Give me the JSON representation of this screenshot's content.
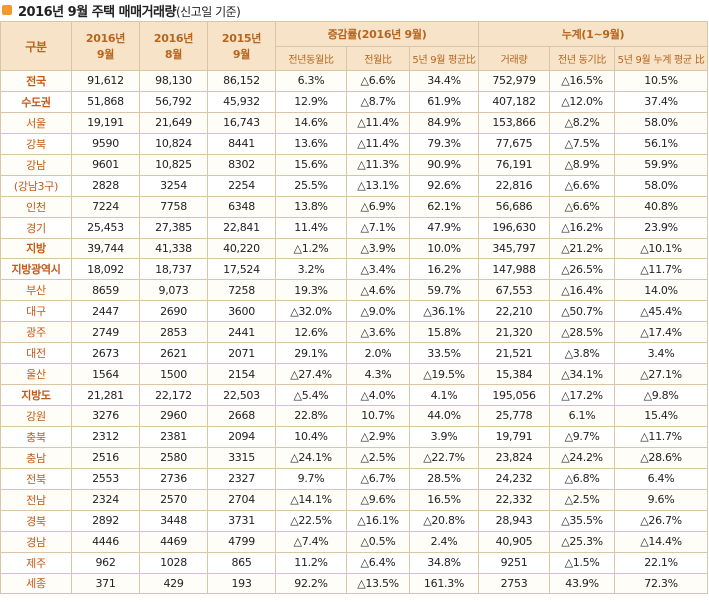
{
  "title": "2016년 9월 주택 매매거래량",
  "title_sub": "(신고일 기준)",
  "header": {
    "col_region": "구분",
    "col_2016_9": "2016년\n9월",
    "col_2016_8": "2016년\n8월",
    "col_2015_9": "2015년\n9월",
    "group_change": "증감률(2016년 9월)",
    "group_cumulative": "누계(1~9월)",
    "sub_yoy": "전년동월比",
    "sub_mom": "전월比",
    "sub_5y": "5년 9월 평균比",
    "sub_volume": "거래량",
    "sub_cum_yoy": "전년 동기比",
    "sub_cum_5y": "5년 9월 누계 평균 比"
  },
  "rows": [
    {
      "region": "전국",
      "bold": true,
      "c": [
        "91,612",
        "98,130",
        "86,152",
        "6.3%",
        "△6.6%",
        "34.4%",
        "752,979",
        "△16.5%",
        "10.5%"
      ]
    },
    {
      "region": "수도권",
      "bold": true,
      "c": [
        "51,868",
        "56,792",
        "45,932",
        "12.9%",
        "△8.7%",
        "61.9%",
        "407,182",
        "△12.0%",
        "37.4%"
      ]
    },
    {
      "region": "서울",
      "bold": false,
      "c": [
        "19,191",
        "21,649",
        "16,743",
        "14.6%",
        "△11.4%",
        "84.9%",
        "153,866",
        "△8.2%",
        "58.0%"
      ]
    },
    {
      "region": "강북",
      "bold": false,
      "c": [
        "9590",
        "10,824",
        "8441",
        "13.6%",
        "△11.4%",
        "79.3%",
        "77,675",
        "△7.5%",
        "56.1%"
      ]
    },
    {
      "region": "강남",
      "bold": false,
      "c": [
        "9601",
        "10,825",
        "8302",
        "15.6%",
        "△11.3%",
        "90.9%",
        "76,191",
        "△8.9%",
        "59.9%"
      ]
    },
    {
      "region": "(강남3구)",
      "bold": false,
      "c": [
        "2828",
        "3254",
        "2254",
        "25.5%",
        "△13.1%",
        "92.6%",
        "22,816",
        "△6.6%",
        "58.0%"
      ]
    },
    {
      "region": "인천",
      "bold": false,
      "c": [
        "7224",
        "7758",
        "6348",
        "13.8%",
        "△6.9%",
        "62.1%",
        "56,686",
        "△6.6%",
        "40.8%"
      ]
    },
    {
      "region": "경기",
      "bold": false,
      "c": [
        "25,453",
        "27,385",
        "22,841",
        "11.4%",
        "△7.1%",
        "47.9%",
        "196,630",
        "△16.2%",
        "23.9%"
      ]
    },
    {
      "region": "지방",
      "bold": true,
      "c": [
        "39,744",
        "41,338",
        "40,220",
        "△1.2%",
        "△3.9%",
        "10.0%",
        "345,797",
        "△21.2%",
        "△10.1%"
      ]
    },
    {
      "region": "지방광역시",
      "bold": true,
      "c": [
        "18,092",
        "18,737",
        "17,524",
        "3.2%",
        "△3.4%",
        "16.2%",
        "147,988",
        "△26.5%",
        "△11.7%"
      ]
    },
    {
      "region": "부산",
      "bold": false,
      "c": [
        "8659",
        "9,073",
        "7258",
        "19.3%",
        "△4.6%",
        "59.7%",
        "67,553",
        "△16.4%",
        "14.0%"
      ]
    },
    {
      "region": "대구",
      "bold": false,
      "c": [
        "2447",
        "2690",
        "3600",
        "△32.0%",
        "△9.0%",
        "△36.1%",
        "22,210",
        "△50.7%",
        "△45.4%"
      ]
    },
    {
      "region": "광주",
      "bold": false,
      "c": [
        "2749",
        "2853",
        "2441",
        "12.6%",
        "△3.6%",
        "15.8%",
        "21,320",
        "△28.5%",
        "△17.4%"
      ]
    },
    {
      "region": "대전",
      "bold": false,
      "c": [
        "2673",
        "2621",
        "2071",
        "29.1%",
        "2.0%",
        "33.5%",
        "21,521",
        "△3.8%",
        "3.4%"
      ]
    },
    {
      "region": "울산",
      "bold": false,
      "c": [
        "1564",
        "1500",
        "2154",
        "△27.4%",
        "4.3%",
        "△19.5%",
        "15,384",
        "△34.1%",
        "△27.1%"
      ]
    },
    {
      "region": "지방도",
      "bold": true,
      "c": [
        "21,281",
        "22,172",
        "22,503",
        "△5.4%",
        "△4.0%",
        "4.1%",
        "195,056",
        "△17.2%",
        "△9.8%"
      ]
    },
    {
      "region": "강원",
      "bold": false,
      "c": [
        "3276",
        "2960",
        "2668",
        "22.8%",
        "10.7%",
        "44.0%",
        "25,778",
        "6.1%",
        "15.4%"
      ]
    },
    {
      "region": "충북",
      "bold": false,
      "c": [
        "2312",
        "2381",
        "2094",
        "10.4%",
        "△2.9%",
        "3.9%",
        "19,791",
        "△9.7%",
        "△11.7%"
      ]
    },
    {
      "region": "충남",
      "bold": false,
      "c": [
        "2516",
        "2580",
        "3315",
        "△24.1%",
        "△2.5%",
        "△22.7%",
        "23,824",
        "△24.2%",
        "△28.6%"
      ]
    },
    {
      "region": "전북",
      "bold": false,
      "c": [
        "2553",
        "2736",
        "2327",
        "9.7%",
        "△6.7%",
        "28.5%",
        "24,232",
        "△6.8%",
        "6.4%"
      ]
    },
    {
      "region": "전남",
      "bold": false,
      "c": [
        "2324",
        "2570",
        "2704",
        "△14.1%",
        "△9.6%",
        "16.5%",
        "22,332",
        "△2.5%",
        "9.6%"
      ]
    },
    {
      "region": "경북",
      "bold": false,
      "c": [
        "2892",
        "3448",
        "3731",
        "△22.5%",
        "△16.1%",
        "△20.8%",
        "28,943",
        "△35.5%",
        "△26.7%"
      ]
    },
    {
      "region": "경남",
      "bold": false,
      "c": [
        "4446",
        "4469",
        "4799",
        "△7.4%",
        "△0.5%",
        "2.4%",
        "40,905",
        "△25.3%",
        "△14.4%"
      ]
    },
    {
      "region": "제주",
      "bold": false,
      "c": [
        "962",
        "1028",
        "865",
        "11.2%",
        "△6.4%",
        "34.8%",
        "9251",
        "△1.5%",
        "22.1%"
      ]
    },
    {
      "region": "세종",
      "bold": false,
      "c": [
        "371",
        "429",
        "193",
        "92.2%",
        "△13.5%",
        "161.3%",
        "2753",
        "43.9%",
        "72.3%"
      ]
    }
  ]
}
